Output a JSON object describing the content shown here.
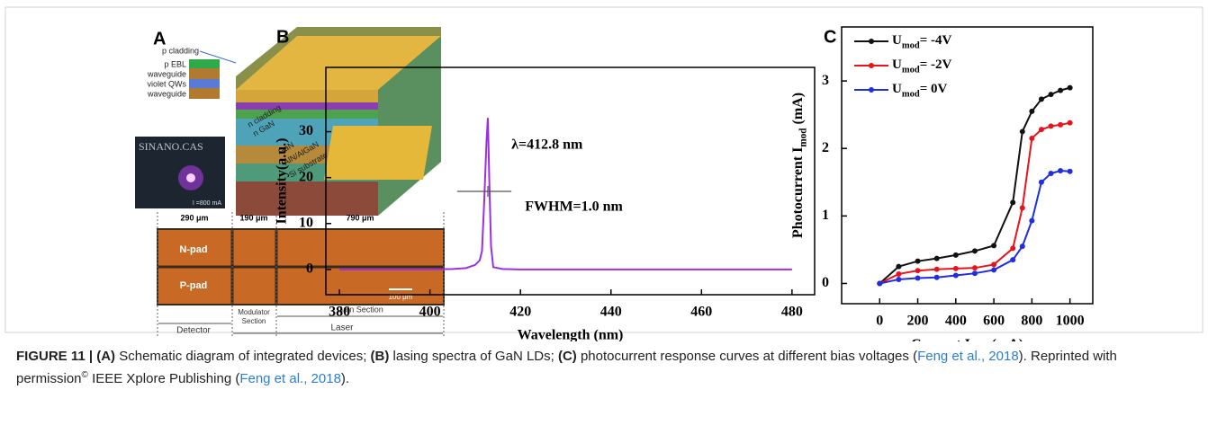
{
  "figure": {
    "panel_a": {
      "label": "A",
      "layer_labels": [
        "p cladding",
        "p EBL",
        "waveguide",
        "violet QWs",
        "waveguide"
      ],
      "structure_labels": [
        "n cladding",
        "n GaN",
        "GaN",
        "AlN/AlGaN",
        "Si substrate"
      ],
      "photo_label": "SINANO.CAS",
      "photo_current": "I =800 mA",
      "widths": [
        "290 μm",
        "190 μm",
        "790 μm"
      ],
      "pads": [
        "N-pad",
        "P-pad"
      ],
      "scale_bar": "100 μm",
      "sections": {
        "detector": "Detector",
        "modulator": [
          "Modulator",
          "Section"
        ],
        "laser": "Laser",
        "gain": "Gain Section"
      }
    },
    "caption": [
      {
        "text": "FIGURE 11 | ",
        "style": "bold"
      },
      {
        "text": "(A)",
        "style": "bold"
      },
      {
        "text": " Schematic diagram of integrated devices; ",
        "style": "plain"
      },
      {
        "text": "(B)",
        "style": "bold"
      },
      {
        "text": " lasing spectra of GaN LDs; ",
        "style": "plain"
      },
      {
        "text": "(C)",
        "style": "bold"
      },
      {
        "text": " photocurrent response curves at different bias voltages (",
        "style": "plain"
      },
      {
        "text": "Feng et al., 2018",
        "style": "link"
      },
      {
        "text": "). Reprinted with permission",
        "style": "plain"
      },
      {
        "text": "©",
        "style": "sup"
      },
      {
        "text": " IEEE Xplore Publishing (",
        "style": "plain"
      },
      {
        "text": "Feng et al., 2018",
        "style": "link"
      },
      {
        "text": ").",
        "style": "plain"
      }
    ]
  },
  "chart_data": [
    {
      "type": "line",
      "panel_label": "B",
      "x_label": "Wavelength (nm)",
      "y_label": "Intensity(a.u.)",
      "annotations": [
        "λ=412.8 nm",
        "FWHM=1.0 nm"
      ],
      "x": [
        380,
        390,
        400,
        405,
        408,
        410,
        411,
        411.5,
        412,
        412.5,
        412.8,
        413.1,
        413.5,
        414,
        416,
        420,
        440,
        460,
        480
      ],
      "series": [
        {
          "name": null,
          "color": "#9b30e0",
          "values": [
            0,
            0,
            0,
            0.1,
            0.3,
            1,
            2,
            4,
            15,
            28,
            33,
            20,
            5,
            0.5,
            0.1,
            0,
            0,
            0,
            0
          ]
        }
      ],
      "xlim": [
        377,
        485
      ],
      "ylim": [
        -5.5,
        44
      ],
      "xticks": [
        380,
        400,
        420,
        440,
        460,
        480
      ],
      "yticks": [
        0,
        10,
        20,
        30
      ]
    },
    {
      "type": "line",
      "panel_label": "C",
      "x_label": [
        "Current I",
        "Gain",
        "(mA)"
      ],
      "y_label": [
        "Photocurrent I",
        "mod",
        " (mA)"
      ],
      "legend": "upper left",
      "x": [
        0,
        100,
        200,
        300,
        400,
        500,
        600,
        700,
        750,
        800,
        850,
        900,
        950,
        1000
      ],
      "series": [
        {
          "name": [
            "U",
            "mod",
            "= -4V"
          ],
          "color": "#111111",
          "values": [
            0,
            0.25,
            0.33,
            0.37,
            0.42,
            0.48,
            0.56,
            1.2,
            2.25,
            2.55,
            2.73,
            2.8,
            2.86,
            2.9
          ]
        },
        {
          "name": [
            "U",
            "mod",
            "= -2V"
          ],
          "color": "#e8141b",
          "values": [
            0,
            0.14,
            0.19,
            0.21,
            0.22,
            0.23,
            0.28,
            0.52,
            1.12,
            2.15,
            2.28,
            2.33,
            2.35,
            2.38
          ]
        },
        {
          "name": [
            "U",
            "mod",
            "= 0V"
          ],
          "color": "#1f2fe0",
          "values": [
            0,
            0.06,
            0.08,
            0.09,
            0.12,
            0.15,
            0.2,
            0.35,
            0.55,
            0.93,
            1.5,
            1.63,
            1.67,
            1.66
          ]
        }
      ],
      "xlim": [
        -200,
        1120
      ],
      "ylim": [
        -0.3,
        3.8
      ],
      "xticks": [
        0,
        200,
        400,
        600,
        800,
        1000
      ],
      "yticks": [
        0,
        1,
        2,
        3
      ]
    }
  ]
}
